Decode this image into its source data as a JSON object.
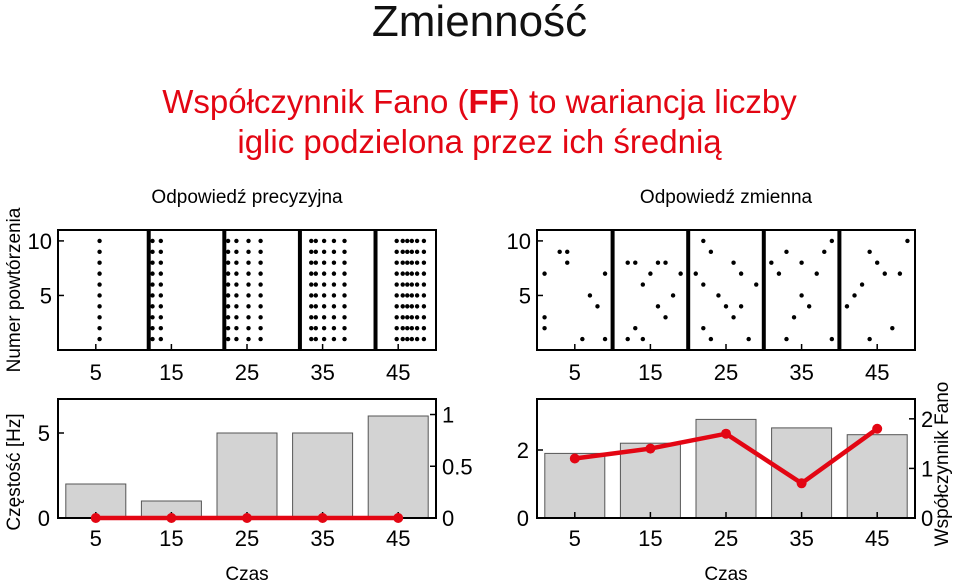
{
  "slide": {
    "title": "Zmienność",
    "subtitle_line1_pre": "Współczynnik Fano (",
    "subtitle_line1_bold": "FF",
    "subtitle_line1_post": ") to wariancja liczby",
    "subtitle_line2": "iglic podzielona przez ich średnią"
  },
  "left_ylabel_raster": "Numer powtórzenia",
  "left_ylabel_rate": "Częstość [Hz]",
  "right_ylabel_fano": "Współczynnik Fano",
  "colors": {
    "bar": "#d3d3d3",
    "fano": "#e30613",
    "spike": "#000000"
  },
  "chart_data": [
    {
      "type": "scatter",
      "title": "Odpowiedź precyzyjna",
      "xticks": [
        5,
        15,
        25,
        35,
        45
      ],
      "yticks": [
        5,
        10
      ],
      "xlim": [
        0,
        50
      ],
      "ylim": [
        0,
        11
      ],
      "trials": 10,
      "spike_times_per_trial": [
        5.5,
        12.5,
        13.6,
        22.5,
        23.6,
        25.2,
        26.8,
        33.5,
        34.1,
        35.2,
        36.5,
        37.9,
        44.8,
        45.6,
        46.2,
        46.8,
        47.5,
        48.4
      ],
      "boundaries": [
        12.0,
        22.0,
        32.0,
        42.0
      ]
    },
    {
      "type": "bar",
      "categories": [
        5,
        15,
        25,
        35,
        45
      ],
      "values": [
        2,
        1,
        5,
        5,
        6
      ],
      "ylim": [
        0,
        7
      ],
      "yticks": [
        0,
        5
      ],
      "xlabel": "Czas",
      "ylabel": "Częstość [Hz]",
      "fano_overlay": {
        "values": [
          0,
          0,
          0,
          0,
          0
        ],
        "ylim": [
          0,
          1.15
        ],
        "yticks": [
          0,
          0.5,
          1
        ]
      }
    },
    {
      "type": "scatter",
      "title": "Odpowiedź zmienna",
      "xticks": [
        5,
        15,
        25,
        35,
        45
      ],
      "yticks": [
        5,
        10
      ],
      "xlim": [
        0,
        50
      ],
      "ylim": [
        0,
        11
      ],
      "boundaries": [
        10.0,
        20.0,
        30.0,
        40.0
      ],
      "spikes": [
        [
          3,
          9
        ],
        [
          4,
          9
        ],
        [
          4,
          8
        ],
        [
          1,
          7
        ],
        [
          9,
          7
        ],
        [
          7,
          5
        ],
        [
          8,
          4
        ],
        [
          1,
          3
        ],
        [
          1,
          2
        ],
        [
          6,
          1
        ],
        [
          9,
          1
        ],
        [
          12,
          8
        ],
        [
          13,
          8
        ],
        [
          14,
          6
        ],
        [
          15,
          7
        ],
        [
          16,
          8
        ],
        [
          17,
          8
        ],
        [
          18,
          5
        ],
        [
          19,
          7
        ],
        [
          16,
          4
        ],
        [
          13,
          2
        ],
        [
          14,
          1
        ],
        [
          12,
          1
        ],
        [
          17,
          3
        ],
        [
          22,
          10
        ],
        [
          23,
          9
        ],
        [
          21,
          7
        ],
        [
          22,
          6
        ],
        [
          24,
          5
        ],
        [
          26,
          8
        ],
        [
          27,
          7
        ],
        [
          25,
          4
        ],
        [
          26,
          3
        ],
        [
          22,
          2
        ],
        [
          23,
          1
        ],
        [
          28,
          1
        ],
        [
          27,
          4
        ],
        [
          29,
          6
        ],
        [
          31,
          8
        ],
        [
          32,
          7
        ],
        [
          33,
          9
        ],
        [
          35,
          8
        ],
        [
          37,
          7
        ],
        [
          38,
          9
        ],
        [
          39,
          10
        ],
        [
          35,
          5
        ],
        [
          36,
          4
        ],
        [
          34,
          3
        ],
        [
          33,
          1
        ],
        [
          39,
          1
        ],
        [
          41,
          4
        ],
        [
          42,
          5
        ],
        [
          43,
          6
        ],
        [
          44,
          9
        ],
        [
          45,
          8
        ],
        [
          46,
          7
        ],
        [
          47,
          2
        ],
        [
          44,
          1
        ],
        [
          48,
          7
        ],
        [
          49,
          10
        ]
      ]
    },
    {
      "type": "bar",
      "categories": [
        5,
        15,
        25,
        35,
        45
      ],
      "values": [
        1.9,
        2.2,
        2.9,
        2.65,
        2.45
      ],
      "ylim": [
        0,
        3.5
      ],
      "yticks": [
        0,
        2
      ],
      "xlabel": "Czas",
      "fano_overlay": {
        "values": [
          1.2,
          1.4,
          1.7,
          0.7,
          1.8
        ],
        "ylim": [
          0,
          2.4
        ],
        "yticks": [
          0,
          1,
          2
        ],
        "ylabel": "Współczynnik Fano"
      }
    }
  ]
}
